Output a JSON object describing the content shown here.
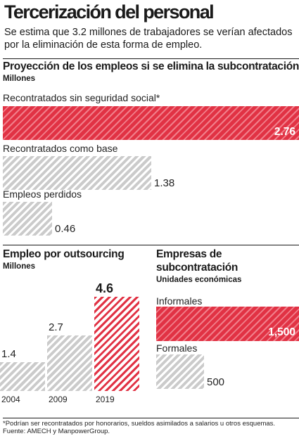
{
  "title": "Tercerización del personal",
  "subtitle": "Se estima que 3.2 millones de trabajadores se verían afectados por la eliminación de esta forma de empleo.",
  "colors": {
    "accent": "#e13244",
    "neutral": "#cbcbcb"
  },
  "chart_data": [
    {
      "type": "bar",
      "orientation": "horizontal",
      "title": "Proyección de los empleos si se elimina la subcontratación",
      "subtitle": "Millones",
      "categories": [
        "Recontratados sin seguridad social*",
        "Recontratados como base",
        "Empleos perdidos"
      ],
      "values": [
        2.76,
        1.38,
        0.46
      ],
      "value_labels": [
        "2.76",
        "1.38",
        "0.46"
      ],
      "highlight": "Recontratados sin seguridad social*"
    },
    {
      "type": "bar",
      "orientation": "vertical",
      "title": "Empleo por outsourcing",
      "subtitle": "Millones",
      "categories": [
        "2004",
        "2009",
        "2019"
      ],
      "values": [
        1.4,
        2.7,
        4.6
      ],
      "value_labels": [
        "1.4",
        "2.7",
        "4.6"
      ],
      "highlight": "2019"
    },
    {
      "type": "bar",
      "orientation": "horizontal",
      "title": "Empresas de subcontratación",
      "subtitle": "Unidades económicas",
      "categories": [
        "Informales",
        "Formales"
      ],
      "values": [
        1500,
        500
      ],
      "value_labels": [
        "1,500",
        "500"
      ],
      "highlight": "Informales"
    }
  ],
  "footnote": "*Podrían ser recontratados por honorarios, sueldos asimilados a salarios u otros esquemas.",
  "source": "Fuente: AMECH y ManpowerGroup."
}
